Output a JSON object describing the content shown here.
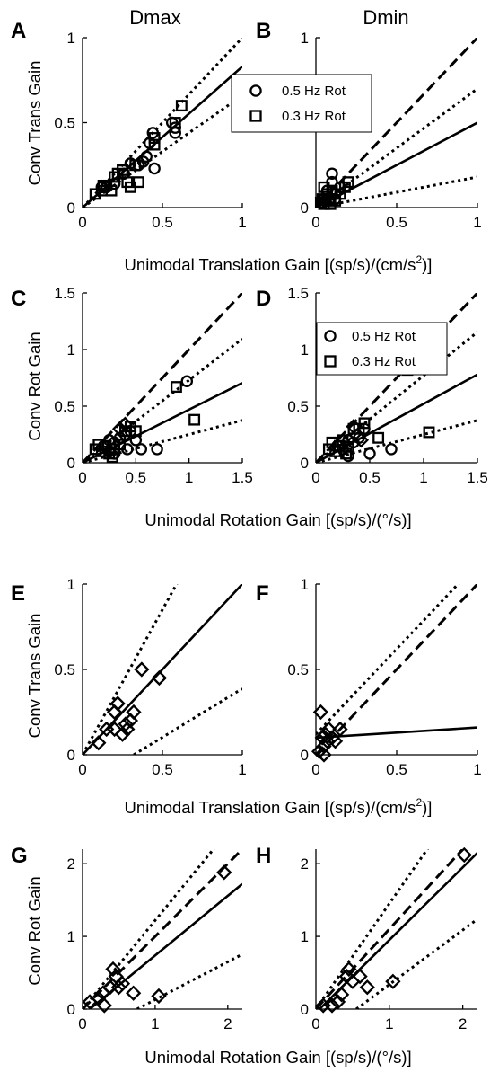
{
  "figure": {
    "col_titles": [
      "Dmax",
      "Dmin"
    ],
    "ylabel_trans": "Conv Trans Gain",
    "ylabel_rot": "Conv Rot Gain",
    "xlabel_trans": "Unimodal Translation Gain [(sp/s)/(cm/s",
    "xlabel_trans_sup": "2",
    "xlabel_trans_end": ")]",
    "xlabel_rot": "Unimodal Rotation Gain [(sp/s)/(°/s)]",
    "legend_circle": "0.5 Hz Rot",
    "legend_square": "0.3 Hz Rot"
  },
  "chart_data": [
    {
      "panel": "A",
      "type": "scatter",
      "ylim": [
        0,
        1
      ],
      "xlim": [
        0,
        1
      ],
      "xticks": [
        "0",
        "0.5",
        "1"
      ],
      "yticks": [
        "0",
        "0.5",
        "1"
      ],
      "lines": [
        {
          "style": "solid",
          "slope": 0.83
        },
        {
          "style": "dotted",
          "slope": 1.0
        },
        {
          "style": "dotted",
          "slope": 0.66
        }
      ],
      "series": [
        {
          "marker": "circle",
          "points": [
            [
              0.12,
              0.12
            ],
            [
              0.15,
              0.12
            ],
            [
              0.2,
              0.14
            ],
            [
              0.26,
              0.2
            ],
            [
              0.3,
              0.26
            ],
            [
              0.35,
              0.25
            ],
            [
              0.38,
              0.27
            ],
            [
              0.4,
              0.3
            ],
            [
              0.42,
              0.38
            ],
            [
              0.44,
              0.44
            ],
            [
              0.45,
              0.23
            ],
            [
              0.56,
              0.5
            ],
            [
              0.58,
              0.47
            ],
            [
              0.58,
              0.44
            ]
          ]
        },
        {
          "marker": "square",
          "points": [
            [
              0.08,
              0.08
            ],
            [
              0.12,
              0.1
            ],
            [
              0.13,
              0.13
            ],
            [
              0.15,
              0.13
            ],
            [
              0.18,
              0.1
            ],
            [
              0.2,
              0.18
            ],
            [
              0.22,
              0.2
            ],
            [
              0.25,
              0.22
            ],
            [
              0.28,
              0.15
            ],
            [
              0.3,
              0.12
            ],
            [
              0.33,
              0.25
            ],
            [
              0.35,
              0.15
            ],
            [
              0.45,
              0.37
            ],
            [
              0.45,
              0.41
            ],
            [
              0.58,
              0.5
            ],
            [
              0.62,
              0.6
            ]
          ]
        }
      ]
    },
    {
      "panel": "B",
      "type": "scatter",
      "ylim": [
        0,
        1
      ],
      "xlim": [
        0,
        1
      ],
      "xticks": [
        "0",
        "0.5",
        "1"
      ],
      "yticks": [
        "0",
        "0.5",
        "1"
      ],
      "lines": [
        {
          "style": "solid",
          "slope": 0.5
        },
        {
          "style": "dashed",
          "slope": 1.0
        },
        {
          "style": "dotted",
          "slope": 0.7
        },
        {
          "style": "dotted",
          "slope": 0.18
        }
      ],
      "series": [
        {
          "marker": "circle",
          "points": [
            [
              0.05,
              0.05
            ],
            [
              0.07,
              0.1
            ],
            [
              0.1,
              0.2
            ],
            [
              0.1,
              0.15
            ],
            [
              0.12,
              0.08
            ],
            [
              0.15,
              0.12
            ],
            [
              0.06,
              0.04
            ],
            [
              0.12,
              0.05
            ]
          ]
        },
        {
          "marker": "square",
          "points": [
            [
              0.03,
              0.03
            ],
            [
              0.04,
              0.05
            ],
            [
              0.05,
              0.12
            ],
            [
              0.07,
              0.08
            ],
            [
              0.08,
              0.05
            ],
            [
              0.1,
              0.1
            ],
            [
              0.12,
              0.04
            ],
            [
              0.15,
              0.08
            ],
            [
              0.18,
              0.12
            ],
            [
              0.2,
              0.15
            ],
            [
              0.05,
              0.02
            ],
            [
              0.09,
              0.02
            ]
          ]
        }
      ]
    },
    {
      "panel": "C",
      "type": "scatter",
      "ylim": [
        0,
        1.5
      ],
      "xlim": [
        0,
        1.5
      ],
      "xticks": [
        "0",
        "0.5",
        "1",
        "1.5"
      ],
      "yticks": [
        "0",
        "0.5",
        "1",
        "1.5"
      ],
      "lines": [
        {
          "style": "solid",
          "slope": 0.47
        },
        {
          "style": "dashed",
          "slope": 1.0
        },
        {
          "style": "dotted",
          "slope": 0.73
        },
        {
          "style": "dotted",
          "slope": 0.25
        }
      ],
      "series": [
        {
          "marker": "circle",
          "points": [
            [
              0.2,
              0.15
            ],
            [
              0.25,
              0.2
            ],
            [
              0.3,
              0.18
            ],
            [
              0.35,
              0.22
            ],
            [
              0.4,
              0.25
            ],
            [
              0.45,
              0.28
            ],
            [
              0.5,
              0.2
            ],
            [
              0.55,
              0.12
            ],
            [
              0.7,
              0.12
            ],
            [
              0.98,
              0.72
            ],
            [
              0.3,
              0.08
            ],
            [
              0.42,
              0.12
            ]
          ]
        },
        {
          "marker": "square",
          "points": [
            [
              0.12,
              0.12
            ],
            [
              0.15,
              0.16
            ],
            [
              0.18,
              0.1
            ],
            [
              0.22,
              0.15
            ],
            [
              0.25,
              0.08
            ],
            [
              0.3,
              0.12
            ],
            [
              0.35,
              0.16
            ],
            [
              0.4,
              0.28
            ],
            [
              0.45,
              0.32
            ],
            [
              0.5,
              0.28
            ],
            [
              0.88,
              0.67
            ],
            [
              1.05,
              0.38
            ],
            [
              0.28,
              0.05
            ]
          ]
        },
        {
          "marker": "diamond",
          "points": [
            [
              0.35,
              0.3
            ],
            [
              0.4,
              0.34
            ],
            [
              0.25,
              0.1
            ]
          ]
        }
      ]
    },
    {
      "panel": "D",
      "type": "scatter",
      "ylim": [
        0,
        1.5
      ],
      "xlim": [
        0,
        1.5
      ],
      "xticks": [
        "0",
        "0.5",
        "1",
        "1.5"
      ],
      "yticks": [
        "0",
        "0.5",
        "1",
        "1.5"
      ],
      "lines": [
        {
          "style": "solid",
          "slope": 0.52
        },
        {
          "style": "dashed",
          "slope": 1.0
        },
        {
          "style": "dotted",
          "slope": 0.77
        },
        {
          "style": "dotted",
          "slope": 0.25
        }
      ],
      "series": [
        {
          "marker": "circle",
          "points": [
            [
              0.2,
              0.15
            ],
            [
              0.25,
              0.12
            ],
            [
              0.3,
              0.2
            ],
            [
              0.35,
              0.18
            ],
            [
              0.4,
              0.22
            ],
            [
              0.45,
              0.3
            ],
            [
              0.5,
              0.08
            ],
            [
              0.7,
              0.12
            ],
            [
              0.95,
              0.83
            ],
            [
              0.3,
              0.06
            ]
          ]
        },
        {
          "marker": "square",
          "points": [
            [
              0.12,
              0.12
            ],
            [
              0.15,
              0.18
            ],
            [
              0.18,
              0.1
            ],
            [
              0.22,
              0.15
            ],
            [
              0.25,
              0.2
            ],
            [
              0.3,
              0.14
            ],
            [
              0.35,
              0.3
            ],
            [
              0.4,
              0.3
            ],
            [
              0.45,
              0.35
            ],
            [
              0.58,
              0.22
            ],
            [
              0.85,
              0.82
            ],
            [
              1.05,
              0.27
            ],
            [
              0.28,
              0.08
            ]
          ]
        },
        {
          "marker": "diamond",
          "points": [
            [
              0.35,
              0.32
            ],
            [
              0.42,
              0.2
            ]
          ]
        }
      ]
    },
    {
      "panel": "E",
      "type": "scatter",
      "ylim": [
        0,
        1
      ],
      "xlim": [
        0,
        1
      ],
      "xticks": [
        "0",
        "0.5",
        "1"
      ],
      "yticks": [
        "0",
        "0.5",
        "1"
      ],
      "lines": [
        {
          "style": "solid",
          "slope": 1.0
        },
        {
          "style": "dotted",
          "slope": 1.7
        },
        {
          "style": "dotted",
          "slope": 0.57,
          "x0": 0.32
        }
      ],
      "series": [
        {
          "marker": "diamond",
          "points": [
            [
              0.1,
              0.07
            ],
            [
              0.15,
              0.15
            ],
            [
              0.2,
              0.15
            ],
            [
              0.2,
              0.25
            ],
            [
              0.22,
              0.3
            ],
            [
              0.25,
              0.12
            ],
            [
              0.27,
              0.18
            ],
            [
              0.28,
              0.15
            ],
            [
              0.3,
              0.2
            ],
            [
              0.32,
              0.25
            ],
            [
              0.37,
              0.5
            ],
            [
              0.48,
              0.45
            ]
          ]
        }
      ]
    },
    {
      "panel": "F",
      "type": "scatter",
      "ylim": [
        0,
        1
      ],
      "xlim": [
        0,
        1
      ],
      "xticks": [
        "0",
        "0.5",
        "1"
      ],
      "yticks": [
        "0",
        "0.5",
        "1"
      ],
      "lines": [
        {
          "style": "solid",
          "intercept": 0.1,
          "slope": 0.06
        },
        {
          "style": "dashed",
          "slope": 1.0
        },
        {
          "style": "dotted",
          "slope": 1.0,
          "intercept": 0.12
        }
      ],
      "series": [
        {
          "marker": "diamond",
          "points": [
            [
              0.02,
              0.02
            ],
            [
              0.03,
              0.25
            ],
            [
              0.04,
              0.1
            ],
            [
              0.05,
              0.05
            ],
            [
              0.06,
              0.12
            ],
            [
              0.07,
              0.08
            ],
            [
              0.08,
              0.15
            ],
            [
              0.1,
              0.1
            ],
            [
              0.12,
              0.08
            ],
            [
              0.15,
              0.15
            ],
            [
              0.05,
              0.0
            ]
          ]
        }
      ]
    },
    {
      "panel": "G",
      "type": "scatter",
      "ylim": [
        0,
        2.2
      ],
      "xlim": [
        0,
        2.2
      ],
      "xticks": [
        "0",
        "1",
        "2"
      ],
      "yticks": [
        "0",
        "1",
        "2"
      ],
      "lines": [
        {
          "style": "solid",
          "slope": 0.82,
          "x0": 0.1
        },
        {
          "style": "dashed",
          "slope": 1.0
        },
        {
          "style": "dotted",
          "slope": 1.22
        },
        {
          "style": "dotted",
          "slope": 0.52,
          "x0": 0.75
        }
      ],
      "series": [
        {
          "marker": "diamond",
          "points": [
            [
              0.1,
              0.1
            ],
            [
              0.22,
              0.15
            ],
            [
              0.28,
              0.22
            ],
            [
              0.3,
              0.05
            ],
            [
              0.38,
              0.3
            ],
            [
              0.42,
              0.55
            ],
            [
              0.46,
              0.45
            ],
            [
              0.5,
              0.3
            ],
            [
              0.55,
              0.35
            ],
            [
              0.7,
              0.22
            ],
            [
              1.05,
              0.18
            ],
            [
              1.95,
              1.88
            ]
          ]
        }
      ]
    },
    {
      "panel": "H",
      "type": "scatter",
      "ylim": [
        0,
        2.2
      ],
      "xlim": [
        0,
        2.2
      ],
      "xticks": [
        "0",
        "1",
        "2"
      ],
      "yticks": [
        "0",
        "1",
        "2"
      ],
      "lines": [
        {
          "style": "solid",
          "slope": 1.0,
          "x0": 0.05
        },
        {
          "style": "dashed",
          "slope": 1.1
        },
        {
          "style": "dotted",
          "slope": 1.45
        },
        {
          "style": "dotted",
          "slope": 0.75,
          "x0": 0.55
        }
      ],
      "series": [
        {
          "marker": "diamond",
          "points": [
            [
              0.1,
              0.05
            ],
            [
              0.22,
              0.05
            ],
            [
              0.3,
              0.1
            ],
            [
              0.35,
              0.2
            ],
            [
              0.42,
              0.45
            ],
            [
              0.45,
              0.55
            ],
            [
              0.5,
              0.38
            ],
            [
              0.6,
              0.45
            ],
            [
              0.7,
              0.3
            ],
            [
              1.05,
              0.38
            ],
            [
              2.02,
              2.12
            ]
          ]
        }
      ]
    }
  ]
}
